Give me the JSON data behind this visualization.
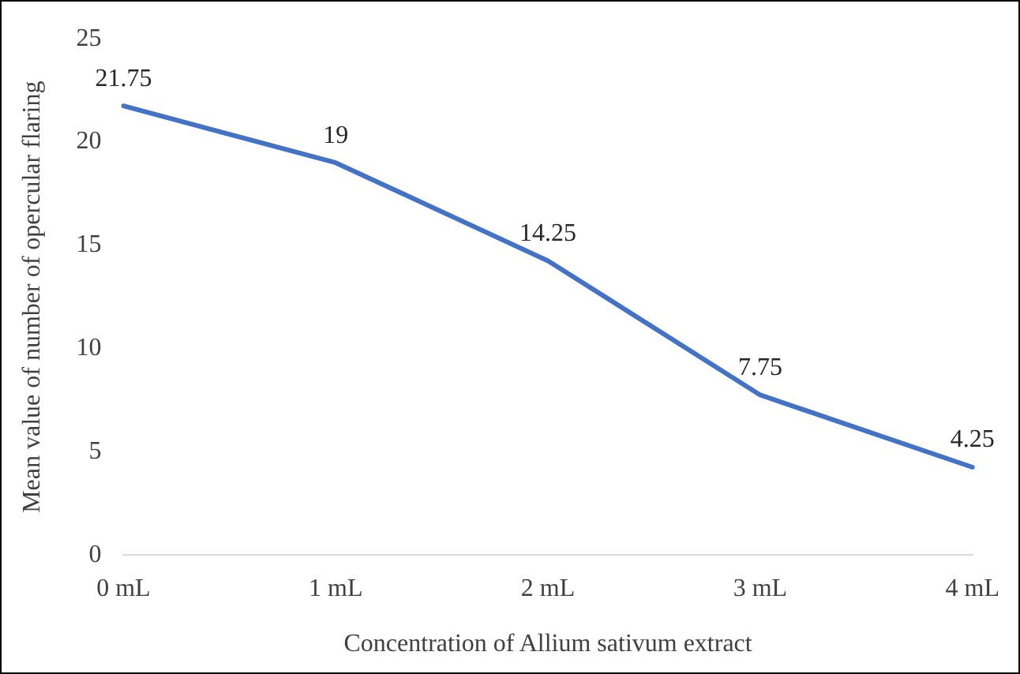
{
  "chart_data": {
    "type": "line",
    "xlabel": "Concentration of Allium sativum extract",
    "ylabel": "Mean value of number of opercular flaring",
    "categories": [
      "0 mL",
      "1 mL",
      "2 mL",
      "3 mL",
      "4 mL"
    ],
    "series": [
      {
        "color": "#4472c4",
        "values": [
          21.75,
          19,
          14.25,
          7.75,
          4.25
        ]
      }
    ],
    "ylim": [
      0,
      25
    ],
    "yticks": [
      0,
      5,
      10,
      15,
      20,
      25
    ],
    "grid": false,
    "legend": false,
    "marker": "none",
    "line_style": "solid",
    "data_labels": true
  }
}
